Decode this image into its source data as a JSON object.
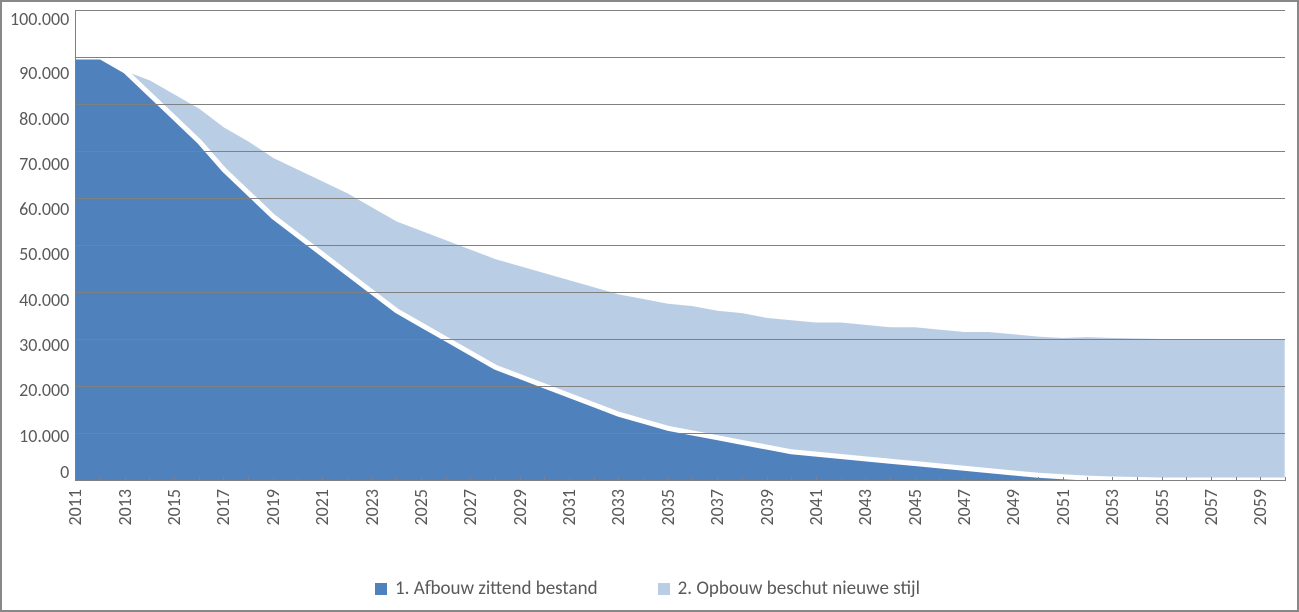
{
  "chart": {
    "type": "area-stacked",
    "background_color": "#ffffff",
    "border_color": "#888888",
    "grid_color": "#808080",
    "axis_line_color": "#808080",
    "tick_label_color": "#595959",
    "tick_label_fontsize": 18,
    "legend_fontsize": 19,
    "font_family": "Calibri",
    "series_gap_stroke": {
      "color": "#ffffff",
      "width": 5
    },
    "y_axis": {
      "min": 0,
      "max": 100000,
      "tick_step": 10000,
      "tick_labels": [
        "100.000",
        "90.000",
        "80.000",
        "70.000",
        "60.000",
        "50.000",
        "40.000",
        "30.000",
        "20.000",
        "10.000",
        "0"
      ]
    },
    "x_axis": {
      "years": [
        2011,
        2012,
        2013,
        2014,
        2015,
        2016,
        2017,
        2018,
        2019,
        2020,
        2021,
        2022,
        2023,
        2024,
        2025,
        2026,
        2027,
        2028,
        2029,
        2030,
        2031,
        2032,
        2033,
        2034,
        2035,
        2036,
        2037,
        2038,
        2039,
        2040,
        2041,
        2042,
        2043,
        2044,
        2045,
        2046,
        2047,
        2048,
        2049,
        2050,
        2051,
        2052,
        2053,
        2054,
        2055,
        2056,
        2057,
        2058,
        2059,
        2060
      ],
      "tick_every": 2,
      "tick_label_rotation_deg": -90
    },
    "series": [
      {
        "key": "afbouw",
        "label": "1. Afbouw zittend bestand",
        "color": "#4f81bd",
        "values": [
          90000,
          90000,
          87000,
          82000,
          77000,
          72000,
          66000,
          61000,
          56000,
          52000,
          48000,
          44000,
          40000,
          36000,
          33000,
          30000,
          27000,
          24000,
          22000,
          20000,
          18000,
          16000,
          14000,
          12500,
          11000,
          10000,
          9000,
          8000,
          7000,
          6000,
          5500,
          5000,
          4500,
          4000,
          3500,
          3000,
          2500,
          2000,
          1500,
          1000,
          700,
          400,
          200,
          100,
          0,
          0,
          0,
          0,
          0,
          0
        ]
      },
      {
        "key": "opbouw",
        "label": "2. Opbouw beschut nieuwe stijl",
        "color": "#b9cde5",
        "values": [
          0,
          0,
          0,
          3000,
          5000,
          7000,
          9000,
          11000,
          12500,
          14000,
          15500,
          17000,
          18000,
          19000,
          20000,
          21000,
          22000,
          23000,
          23500,
          24000,
          24500,
          25000,
          25500,
          26000,
          26500,
          27000,
          27000,
          27500,
          27500,
          28000,
          28000,
          28500,
          28500,
          28500,
          29000,
          29000,
          29000,
          29500,
          29500,
          29500,
          29500,
          30000,
          30000,
          30000,
          30000,
          30000,
          30000,
          30000,
          30000,
          30000
        ]
      }
    ],
    "legend": [
      {
        "swatch": "#4f81bd",
        "text": "1. Afbouw zittend bestand"
      },
      {
        "swatch": "#b9cde5",
        "text": "2. Opbouw beschut nieuwe stijl"
      }
    ]
  }
}
